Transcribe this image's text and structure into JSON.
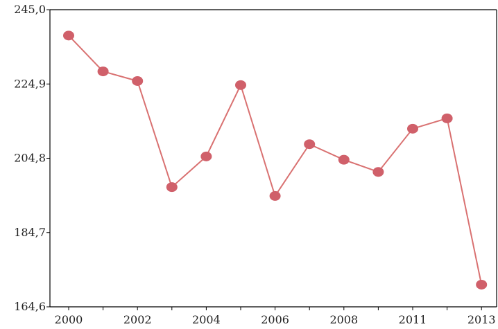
{
  "chart_data": {
    "type": "line",
    "x_tick_labels": [
      "2000",
      "2002",
      "2004",
      "2006",
      "2008",
      "2011",
      "2013"
    ],
    "y_tick_labels": [
      "245,0",
      "224,9",
      "204,8",
      "184,7",
      "164,6"
    ],
    "ylim": [
      164.6,
      245.0
    ],
    "grid": false,
    "legend": "none",
    "colors": {
      "line": "#d97171",
      "marker": "#d0606a",
      "axis": "#000000"
    },
    "series": [
      {
        "points": [
          {
            "x": 0,
            "y": 238.0
          },
          {
            "x": 1,
            "y": 228.3
          },
          {
            "x": 2,
            "y": 225.7
          },
          {
            "x": 3,
            "y": 197.0
          },
          {
            "x": 4,
            "y": 205.3
          },
          {
            "x": 5,
            "y": 224.6
          },
          {
            "x": 6,
            "y": 194.6
          },
          {
            "x": 7,
            "y": 208.6
          },
          {
            "x": 8,
            "y": 204.4
          },
          {
            "x": 9,
            "y": 201.1
          },
          {
            "x": 10,
            "y": 212.8
          },
          {
            "x": 11,
            "y": 215.6
          },
          {
            "x": 12,
            "y": 170.6
          }
        ]
      }
    ]
  }
}
